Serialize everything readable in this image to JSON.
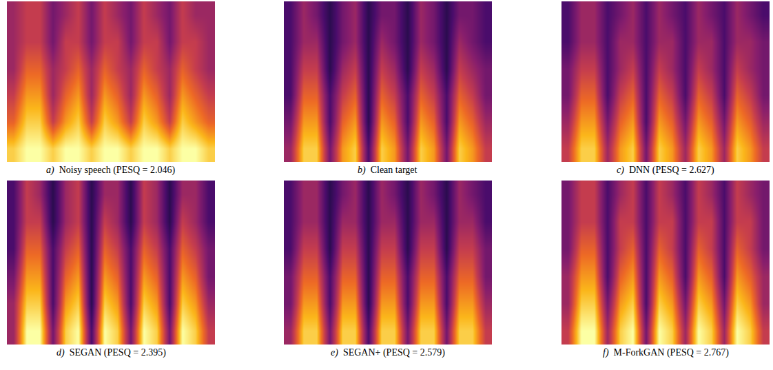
{
  "chart_data": [
    {
      "type": "heatmap",
      "label": "a)",
      "caption": "Noisy speech (PESQ = 2.046)",
      "tick_labels": false,
      "zlim": [
        0,
        1
      ],
      "cells": [
        [
          0.9,
          1.0,
          1.0,
          0.9,
          1.0,
          1.0,
          0.9,
          1.0,
          1.0,
          0.9,
          1.0,
          1.0,
          0.9,
          1.0,
          1.0,
          0.9
        ],
        [
          0.7,
          0.9,
          0.9,
          0.6,
          0.8,
          0.9,
          0.6,
          0.9,
          0.8,
          0.6,
          0.9,
          0.8,
          0.6,
          0.9,
          0.8,
          0.7
        ],
        [
          0.6,
          0.8,
          0.8,
          0.5,
          0.7,
          0.8,
          0.5,
          0.8,
          0.7,
          0.5,
          0.8,
          0.7,
          0.5,
          0.8,
          0.7,
          0.6
        ],
        [
          0.5,
          0.7,
          0.7,
          0.5,
          0.6,
          0.7,
          0.5,
          0.7,
          0.6,
          0.5,
          0.7,
          0.6,
          0.5,
          0.7,
          0.6,
          0.5
        ],
        [
          0.5,
          0.6,
          0.6,
          0.4,
          0.6,
          0.6,
          0.4,
          0.6,
          0.6,
          0.4,
          0.6,
          0.6,
          0.4,
          0.6,
          0.6,
          0.5
        ],
        [
          0.5,
          0.6,
          0.6,
          0.4,
          0.5,
          0.6,
          0.4,
          0.6,
          0.5,
          0.4,
          0.6,
          0.5,
          0.4,
          0.6,
          0.5,
          0.5
        ]
      ]
    },
    {
      "type": "heatmap",
      "label": "b)",
      "caption": "Clean target",
      "tick_labels": false,
      "zlim": [
        0,
        1
      ],
      "cells": [
        [
          0.5,
          0.9,
          0.9,
          0.4,
          0.8,
          0.9,
          0.3,
          0.9,
          0.8,
          0.4,
          0.9,
          0.8,
          0.4,
          0.9,
          0.8,
          0.6
        ],
        [
          0.4,
          0.8,
          0.8,
          0.3,
          0.7,
          0.8,
          0.2,
          0.8,
          0.7,
          0.3,
          0.8,
          0.7,
          0.3,
          0.8,
          0.7,
          0.5
        ],
        [
          0.3,
          0.7,
          0.7,
          0.3,
          0.6,
          0.7,
          0.2,
          0.7,
          0.6,
          0.3,
          0.7,
          0.6,
          0.3,
          0.7,
          0.6,
          0.4
        ],
        [
          0.3,
          0.6,
          0.6,
          0.2,
          0.5,
          0.6,
          0.2,
          0.6,
          0.5,
          0.2,
          0.6,
          0.5,
          0.2,
          0.6,
          0.5,
          0.4
        ],
        [
          0.3,
          0.5,
          0.5,
          0.2,
          0.4,
          0.5,
          0.2,
          0.5,
          0.4,
          0.2,
          0.5,
          0.4,
          0.2,
          0.5,
          0.4,
          0.3
        ],
        [
          0.3,
          0.5,
          0.4,
          0.2,
          0.4,
          0.5,
          0.2,
          0.4,
          0.4,
          0.2,
          0.5,
          0.4,
          0.2,
          0.4,
          0.4,
          0.3
        ]
      ]
    },
    {
      "type": "heatmap",
      "label": "c)",
      "caption": "DNN (PESQ = 2.627)",
      "tick_labels": false,
      "zlim": [
        0,
        1
      ],
      "cells": [
        [
          0.6,
          0.9,
          0.9,
          0.5,
          0.8,
          0.9,
          0.4,
          0.9,
          0.8,
          0.5,
          0.9,
          0.8,
          0.5,
          0.9,
          0.8,
          0.6
        ],
        [
          0.5,
          0.8,
          0.8,
          0.4,
          0.7,
          0.8,
          0.3,
          0.8,
          0.7,
          0.4,
          0.8,
          0.7,
          0.4,
          0.8,
          0.7,
          0.5
        ],
        [
          0.4,
          0.7,
          0.7,
          0.3,
          0.6,
          0.7,
          0.3,
          0.7,
          0.6,
          0.3,
          0.7,
          0.6,
          0.3,
          0.7,
          0.6,
          0.4
        ],
        [
          0.4,
          0.6,
          0.6,
          0.3,
          0.5,
          0.6,
          0.3,
          0.6,
          0.5,
          0.3,
          0.6,
          0.5,
          0.3,
          0.6,
          0.5,
          0.4
        ],
        [
          0.3,
          0.5,
          0.5,
          0.3,
          0.5,
          0.5,
          0.3,
          0.5,
          0.5,
          0.3,
          0.5,
          0.5,
          0.3,
          0.5,
          0.5,
          0.4
        ],
        [
          0.3,
          0.5,
          0.5,
          0.3,
          0.4,
          0.5,
          0.3,
          0.5,
          0.4,
          0.3,
          0.5,
          0.4,
          0.3,
          0.5,
          0.4,
          0.3
        ]
      ]
    },
    {
      "type": "heatmap",
      "label": "d)",
      "caption": "SEGAN (PESQ = 2.395)",
      "tick_labels": false,
      "zlim": [
        0,
        1
      ],
      "cells": [
        [
          0.5,
          1.0,
          1.0,
          0.4,
          0.9,
          1.0,
          0.3,
          1.0,
          0.9,
          0.4,
          1.0,
          0.9,
          0.4,
          1.0,
          0.9,
          0.6
        ],
        [
          0.5,
          0.9,
          0.9,
          0.3,
          0.8,
          0.9,
          0.2,
          0.9,
          0.8,
          0.3,
          0.9,
          0.8,
          0.3,
          0.9,
          0.8,
          0.5
        ],
        [
          0.4,
          0.8,
          0.8,
          0.3,
          0.7,
          0.8,
          0.2,
          0.8,
          0.7,
          0.3,
          0.8,
          0.7,
          0.3,
          0.8,
          0.7,
          0.4
        ],
        [
          0.3,
          0.7,
          0.7,
          0.3,
          0.6,
          0.7,
          0.2,
          0.7,
          0.6,
          0.3,
          0.7,
          0.6,
          0.3,
          0.7,
          0.6,
          0.4
        ],
        [
          0.3,
          0.6,
          0.6,
          0.2,
          0.5,
          0.6,
          0.2,
          0.6,
          0.5,
          0.2,
          0.6,
          0.5,
          0.2,
          0.6,
          0.5,
          0.3
        ],
        [
          0.3,
          0.6,
          0.5,
          0.2,
          0.5,
          0.6,
          0.2,
          0.5,
          0.5,
          0.2,
          0.6,
          0.5,
          0.2,
          0.5,
          0.5,
          0.3
        ]
      ]
    },
    {
      "type": "heatmap",
      "label": "e)",
      "caption": "SEGAN+ (PESQ = 2.579)",
      "tick_labels": false,
      "zlim": [
        0,
        1
      ],
      "cells": [
        [
          0.5,
          0.9,
          0.9,
          0.4,
          0.9,
          0.9,
          0.3,
          0.9,
          0.9,
          0.4,
          0.9,
          0.9,
          0.4,
          0.9,
          0.9,
          0.6
        ],
        [
          0.4,
          0.8,
          0.8,
          0.3,
          0.8,
          0.8,
          0.2,
          0.8,
          0.8,
          0.3,
          0.8,
          0.8,
          0.3,
          0.8,
          0.8,
          0.5
        ],
        [
          0.4,
          0.7,
          0.7,
          0.3,
          0.7,
          0.7,
          0.2,
          0.7,
          0.7,
          0.3,
          0.7,
          0.7,
          0.3,
          0.7,
          0.7,
          0.4
        ],
        [
          0.3,
          0.6,
          0.6,
          0.2,
          0.6,
          0.6,
          0.2,
          0.6,
          0.6,
          0.2,
          0.6,
          0.6,
          0.2,
          0.6,
          0.6,
          0.4
        ],
        [
          0.3,
          0.5,
          0.5,
          0.2,
          0.5,
          0.5,
          0.2,
          0.5,
          0.5,
          0.2,
          0.5,
          0.5,
          0.2,
          0.5,
          0.5,
          0.3
        ],
        [
          0.3,
          0.5,
          0.5,
          0.2,
          0.4,
          0.5,
          0.2,
          0.5,
          0.4,
          0.2,
          0.5,
          0.4,
          0.2,
          0.5,
          0.4,
          0.3
        ]
      ]
    },
    {
      "type": "heatmap",
      "label": "f)",
      "caption": "M-ForkGAN (PESQ = 2.767)",
      "tick_labels": false,
      "zlim": [
        0,
        1
      ],
      "cells": [
        [
          0.6,
          1.0,
          1.0,
          0.5,
          0.9,
          1.0,
          0.4,
          1.0,
          0.9,
          0.5,
          1.0,
          0.9,
          0.5,
          1.0,
          0.9,
          0.6
        ],
        [
          0.5,
          0.9,
          0.9,
          0.4,
          0.8,
          0.9,
          0.3,
          0.9,
          0.8,
          0.4,
          0.9,
          0.8,
          0.4,
          0.9,
          0.8,
          0.5
        ],
        [
          0.5,
          0.8,
          0.8,
          0.3,
          0.7,
          0.8,
          0.3,
          0.8,
          0.7,
          0.3,
          0.8,
          0.7,
          0.3,
          0.8,
          0.7,
          0.5
        ],
        [
          0.4,
          0.7,
          0.7,
          0.3,
          0.6,
          0.7,
          0.3,
          0.7,
          0.6,
          0.3,
          0.7,
          0.6,
          0.3,
          0.7,
          0.6,
          0.4
        ],
        [
          0.4,
          0.6,
          0.6,
          0.3,
          0.6,
          0.6,
          0.3,
          0.6,
          0.6,
          0.3,
          0.6,
          0.6,
          0.3,
          0.6,
          0.6,
          0.4
        ],
        [
          0.4,
          0.6,
          0.6,
          0.3,
          0.5,
          0.6,
          0.3,
          0.6,
          0.5,
          0.3,
          0.6,
          0.5,
          0.3,
          0.6,
          0.5,
          0.4
        ]
      ]
    }
  ]
}
